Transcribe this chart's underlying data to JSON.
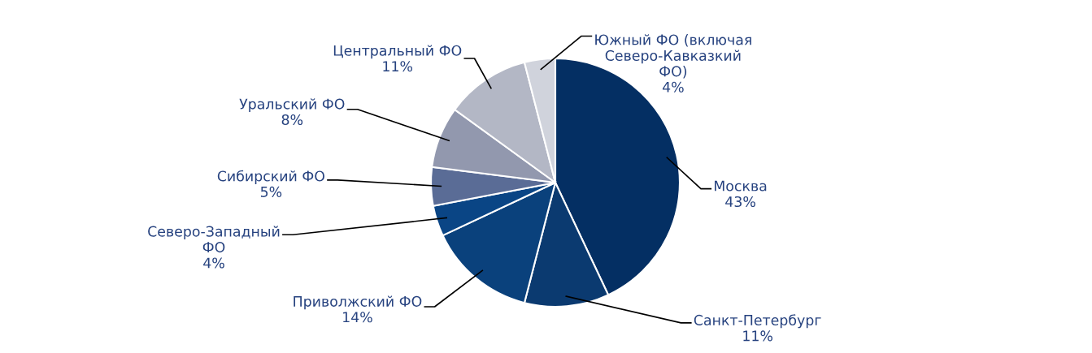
{
  "chart_data": {
    "type": "pie",
    "categories": [
      "Москва",
      "Санкт-Петербург",
      "Приволжский ФО",
      "Северо-Западный\nФО",
      "Сибирский ФО",
      "Уральский ФО",
      "Центральный ФО",
      "Южный ФО (включая\nСеверо-Кавказкий\nФО)"
    ],
    "values": [
      43,
      11,
      14,
      4,
      5,
      8,
      11,
      4
    ],
    "value_labels": [
      "43%",
      "11%",
      "14%",
      "4%",
      "5%",
      "8%",
      "11%",
      "4%"
    ],
    "colors": [
      "#042f63",
      "#0b3a70",
      "#0a417c",
      "#0a4585",
      "#5a6c96",
      "#9298ae",
      "#b3b7c5",
      "#d0d3dc"
    ]
  }
}
